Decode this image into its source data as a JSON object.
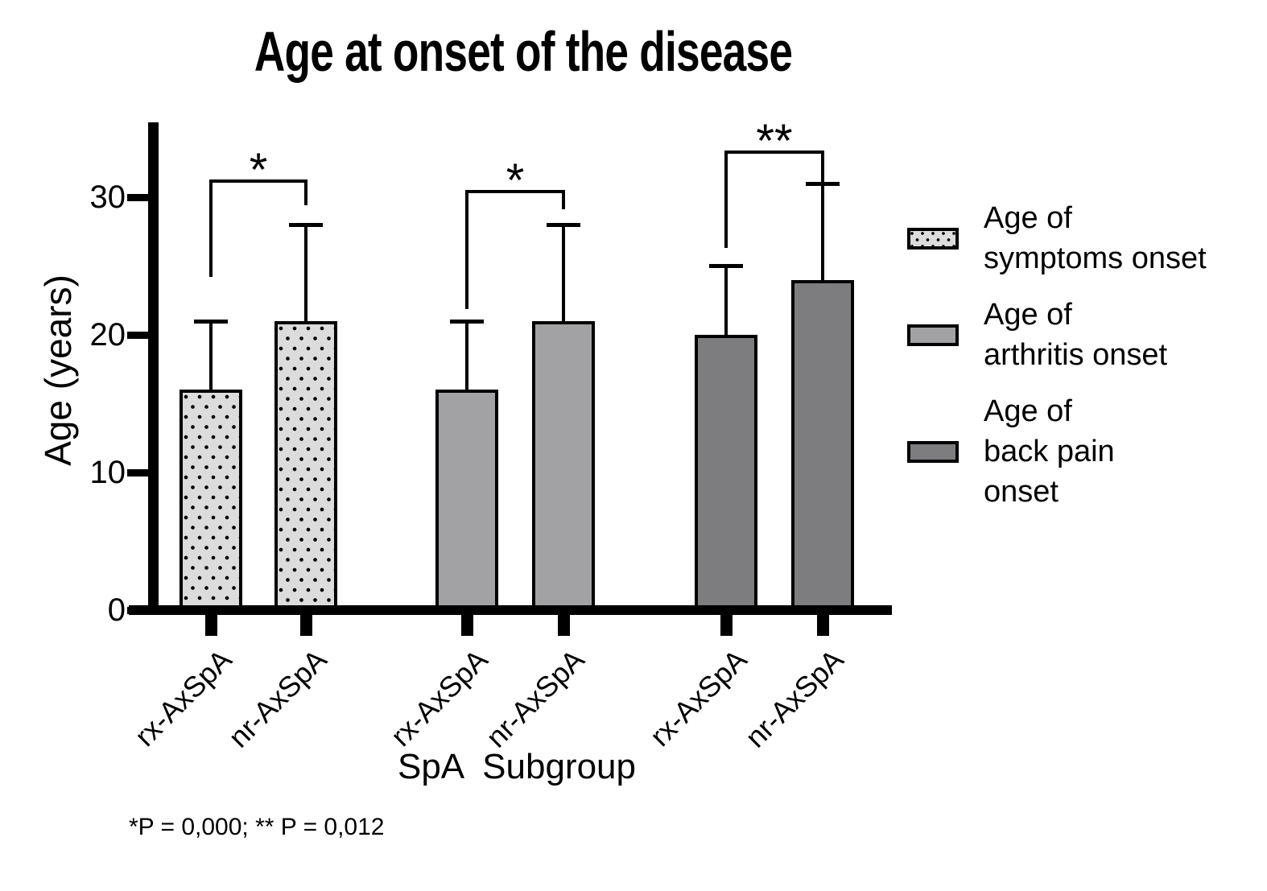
{
  "title": "Age at onset of the disease",
  "y_axis": {
    "label": "Age (years)",
    "ticks": [
      0,
      10,
      20,
      30
    ],
    "max": 35
  },
  "x_axis": {
    "label": "SpA  Subgroup"
  },
  "footnote": "*P = 0,000; ** P = 0,012",
  "colors": {
    "ink": "#000000",
    "symptoms_fill": "#dcdcdc",
    "arthritis_fill": "#a2a2a4",
    "back_pain_fill": "#7d7d80"
  },
  "legend": [
    {
      "swatch": "symptoms",
      "lines": [
        "Age of",
        "symptoms onset"
      ]
    },
    {
      "swatch": "arthritis",
      "lines": [
        "Age of",
        "arthritis onset"
      ]
    },
    {
      "swatch": "back_pain",
      "lines": [
        "Age of",
        "back pain",
        "onset"
      ]
    }
  ],
  "chart_data": {
    "type": "bar",
    "title": "Age at onset of the disease",
    "xlabel": "SpA Subgroup",
    "ylabel": "Age (years)",
    "ylim": [
      0,
      35
    ],
    "yticks": [
      0,
      10,
      20,
      30
    ],
    "categories": [
      "rx-AxSpA",
      "nr-AxSpA"
    ],
    "series": [
      {
        "name": "Age of symptoms onset",
        "style": "symptoms",
        "values": [
          16,
          21
        ],
        "error_caps": [
          21,
          28
        ]
      },
      {
        "name": "Age of arthritis onset",
        "style": "arthritis",
        "values": [
          16,
          21
        ],
        "error_caps": [
          21,
          28
        ]
      },
      {
        "name": "Age of back pain onset",
        "style": "back_pain",
        "values": [
          20,
          24
        ],
        "error_caps": [
          25,
          31
        ]
      }
    ],
    "significance_brackets": [
      {
        "label": "*",
        "series": 0,
        "top_y": 31.3,
        "left_leg_to": 24.2,
        "right_leg_to": 29.4,
        "p_value": "P = 0,000"
      },
      {
        "label": "*",
        "series": 1,
        "top_y": 30.5,
        "left_leg_to": 21.9,
        "right_leg_to": 29.1,
        "p_value": "P = 0,000"
      },
      {
        "label": "**",
        "series": 2,
        "top_y": 33.4,
        "left_leg_to": 26.3,
        "right_leg_to": 30.9,
        "p_value": "P = 0,012"
      }
    ]
  }
}
